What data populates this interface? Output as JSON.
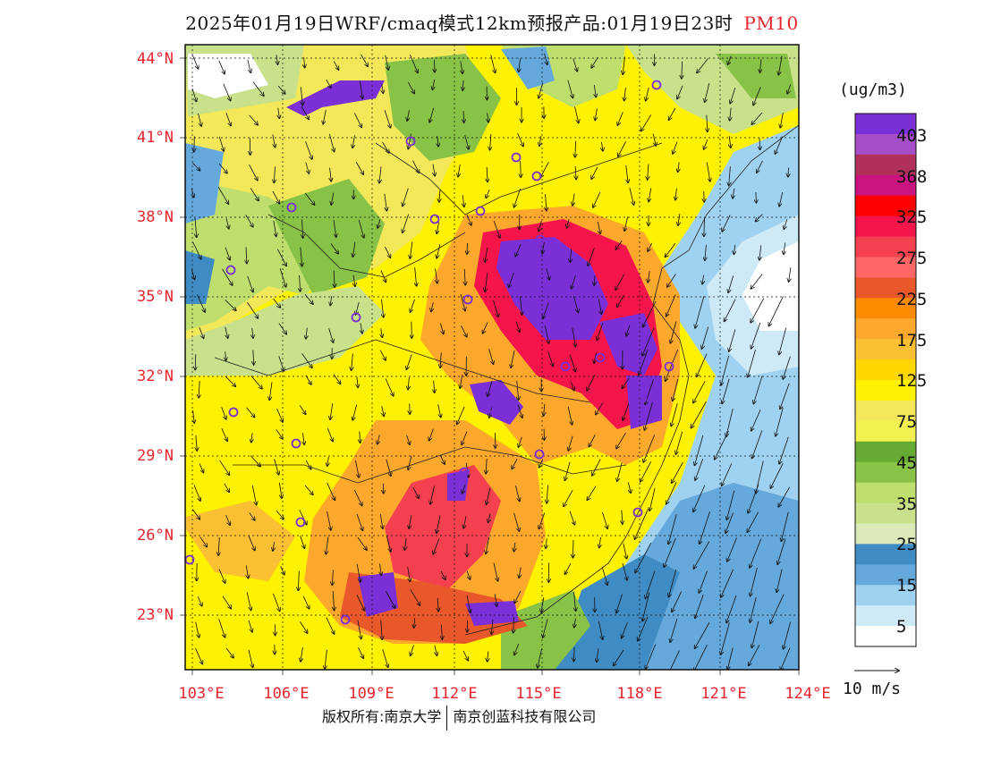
{
  "title": {
    "main": "2025年01月19日WRF/cmaq模式12km预报产品:01月19日23时",
    "pollutant": "PM10"
  },
  "lat_labels": [
    "44°N",
    "41°N",
    "38°N",
    "35°N",
    "32°N",
    "29°N",
    "26°N",
    "23°N"
  ],
  "lon_labels": [
    "103°E",
    "106°E",
    "109°E",
    "112°E",
    "115°E",
    "118°E",
    "121°E",
    "124°E"
  ],
  "colorbar": {
    "unit": "(ug/m3)",
    "labels": [
      "403",
      "368",
      "325",
      "275",
      "225",
      "175",
      "125",
      "75",
      "45",
      "35",
      "25",
      "15",
      "5"
    ],
    "colors": [
      "#7b2fd6",
      "#a64ec8",
      "#b0305a",
      "#cc1480",
      "#ff0000",
      "#f5154a",
      "#f4404f",
      "#ff6666",
      "#e8582a",
      "#ff8c00",
      "#fca82c",
      "#fbbf34",
      "#ffd700",
      "#fff200",
      "#f2e85a",
      "#f0f050",
      "#66aa33",
      "#88c246",
      "#bede6e",
      "#c8e18a",
      "#dbeab8",
      "#3f8cc4",
      "#64a8dc",
      "#9fd2f0",
      "#cfeaf7",
      "#ffffff"
    ]
  },
  "wind_reference": "10 m/s",
  "footer": {
    "left": "版权所有:南京大学",
    "right": "南京创蓝科技有限公司"
  }
}
